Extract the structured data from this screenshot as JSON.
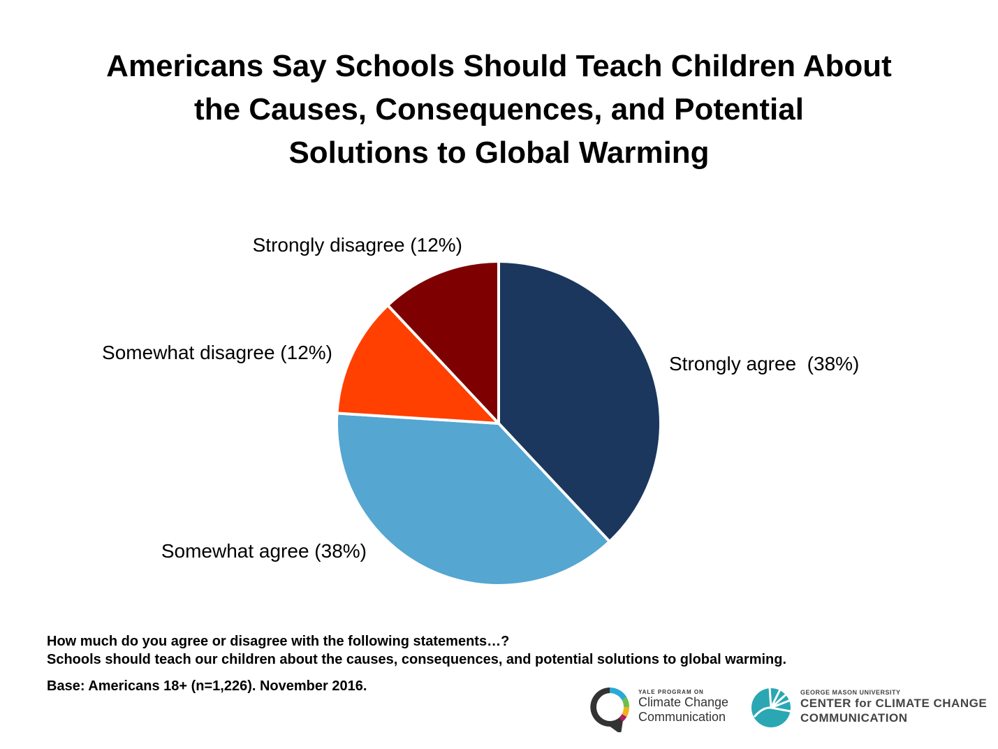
{
  "chart_data": {
    "type": "pie",
    "title": "Americans Say Schools Should Teach Children About the Causes, Consequences, and Potential Solutions to Global Warming",
    "title_lines": [
      "Americans Say Schools Should Teach Children About",
      "the Causes, Consequences, and Potential",
      "Solutions to Global Warming"
    ],
    "slices": [
      {
        "label": "Strongly agree  (38%)",
        "value": 38,
        "color": "#1b375e"
      },
      {
        "label": "Somewhat agree (38%)",
        "value": 38,
        "color": "#55a6d1"
      },
      {
        "label": "Somewhat disagree (12%)",
        "value": 12,
        "color": "#ff4000"
      },
      {
        "label": "Strongly disagree (12%)",
        "value": 12,
        "color": "#7f0000"
      }
    ]
  },
  "footnotes": {
    "question": "How much do you agree or disagree with the following statements…?",
    "statement": "Schools should teach our children about the causes, consequences, and potential solutions to global warming.",
    "base": "Base: Americans 18+ (n=1,226). November 2016."
  },
  "logos": {
    "yale": {
      "line1": "YALE PROGRAM ON",
      "line2": "Climate Change",
      "line3": "Communication"
    },
    "gmu": {
      "line1": "GEORGE MASON UNIVERSITY",
      "line2": "CENTER for CLIMATE CHANGE",
      "line3": "COMMUNICATION"
    }
  }
}
